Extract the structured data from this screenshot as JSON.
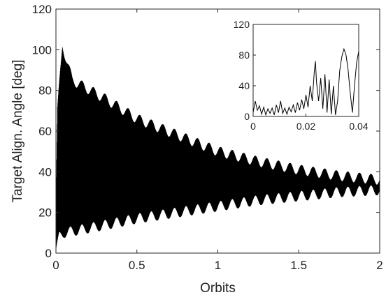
{
  "chart_data": [
    {
      "type": "line",
      "xlabel": "Orbits",
      "ylabel": "Target Align. Angle [deg]",
      "xlim": [
        0,
        2
      ],
      "ylim": [
        0,
        120
      ],
      "xticks": [
        "0",
        "0.5",
        "1",
        "1.5",
        "2"
      ],
      "xtick_values": [
        0,
        0.5,
        1,
        1.5,
        2
      ],
      "yticks": [
        "0",
        "20",
        "40",
        "60",
        "80",
        "100",
        "120"
      ],
      "ytick_values": [
        0,
        20,
        40,
        60,
        80,
        100,
        120
      ],
      "grid": false,
      "series": [
        {
          "color": "#000000",
          "note_oscillation": "dense oscillation between lower and upper envelope",
          "upper_envelope": [
            {
              "x": 0.0,
              "y": 20
            },
            {
              "x": 0.01,
              "y": 70
            },
            {
              "x": 0.04,
              "y": 102
            },
            {
              "x": 0.1,
              "y": 85
            },
            {
              "x": 0.3,
              "y": 76
            },
            {
              "x": 0.5,
              "y": 66
            },
            {
              "x": 0.75,
              "y": 58
            },
            {
              "x": 1.0,
              "y": 50
            },
            {
              "x": 1.25,
              "y": 45
            },
            {
              "x": 1.5,
              "y": 41
            },
            {
              "x": 1.75,
              "y": 38
            },
            {
              "x": 2.0,
              "y": 36
            }
          ],
          "lower_envelope": [
            {
              "x": 0.0,
              "y": 2
            },
            {
              "x": 0.02,
              "y": 8
            },
            {
              "x": 0.05,
              "y": 10
            },
            {
              "x": 0.25,
              "y": 13
            },
            {
              "x": 0.5,
              "y": 17
            },
            {
              "x": 0.75,
              "y": 20
            },
            {
              "x": 1.0,
              "y": 23
            },
            {
              "x": 1.25,
              "y": 26
            },
            {
              "x": 1.5,
              "y": 28
            },
            {
              "x": 1.75,
              "y": 30
            },
            {
              "x": 2.0,
              "y": 31
            }
          ],
          "ripple_amplitude": 2.5
        }
      ]
    },
    {
      "type": "line",
      "xlim": [
        0,
        0.04
      ],
      "ylim": [
        0,
        120
      ],
      "xticks": [
        "0",
        "0.02",
        "0.04"
      ],
      "xtick_values": [
        0,
        0.02,
        0.04
      ],
      "yticks": [
        "0",
        "40",
        "80",
        "120"
      ],
      "ytick_values": [
        0,
        40,
        80,
        120
      ],
      "grid": false,
      "series": [
        {
          "color": "#000000",
          "x": [
            0,
            0.0008,
            0.0016,
            0.0024,
            0.0032,
            0.004,
            0.0048,
            0.0056,
            0.0064,
            0.0072,
            0.008,
            0.0088,
            0.0096,
            0.0104,
            0.0112,
            0.012,
            0.0128,
            0.0136,
            0.0144,
            0.0152,
            0.016,
            0.0168,
            0.0176,
            0.0184,
            0.0192,
            0.02,
            0.0208,
            0.0216,
            0.0224,
            0.0232,
            0.0236,
            0.024,
            0.0248,
            0.0256,
            0.0264,
            0.0272,
            0.028,
            0.0288,
            0.0296,
            0.0304,
            0.0312,
            0.032,
            0.0328,
            0.0336,
            0.0344,
            0.0352,
            0.036,
            0.0368,
            0.0376,
            0.0384,
            0.0392,
            0.04
          ],
          "y": [
            5,
            20,
            8,
            14,
            3,
            12,
            2,
            10,
            4,
            11,
            2,
            15,
            5,
            20,
            4,
            11,
            3,
            12,
            6,
            15,
            5,
            18,
            8,
            22,
            10,
            28,
            12,
            40,
            20,
            60,
            72,
            45,
            20,
            50,
            10,
            55,
            5,
            48,
            3,
            40,
            2,
            20,
            60,
            78,
            88,
            80,
            60,
            30,
            5,
            40,
            70,
            85
          ]
        }
      ]
    }
  ]
}
